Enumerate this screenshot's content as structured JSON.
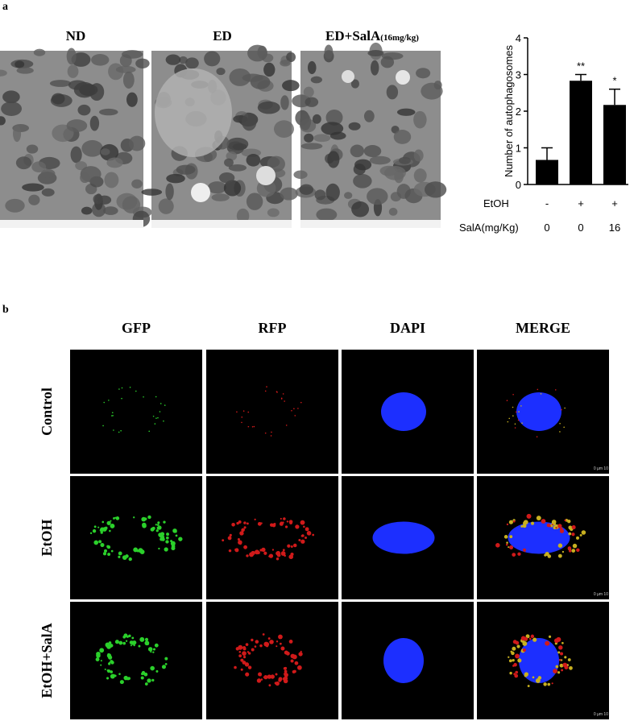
{
  "panel_a": {
    "label": "a",
    "em_images": [
      {
        "title": "ND"
      },
      {
        "title": "ED"
      },
      {
        "title": "ED+SalA",
        "dose": "(16mg/kg)"
      }
    ]
  },
  "chart_data": {
    "type": "bar",
    "y_label": "Number of autophagosomes",
    "values": [
      0.67,
      2.83,
      2.17
    ],
    "errors": [
      0.33,
      0.17,
      0.43
    ],
    "significance": [
      null,
      "**",
      "*"
    ],
    "color": "#000000",
    "ylim": [
      0,
      4
    ],
    "yticks": [
      0,
      1,
      2,
      3,
      4
    ],
    "treatments": [
      {
        "label": "EtOH",
        "values": [
          "-",
          "+",
          "+"
        ]
      },
      {
        "label": "SalA(mg/Kg)",
        "values": [
          "0",
          "0",
          "16"
        ]
      }
    ]
  },
  "panel_b": {
    "label": "b",
    "columns": [
      "GFP",
      "RFP",
      "DAPI",
      "MERGE"
    ],
    "rows": [
      "Control",
      "EtOH",
      "EtOH+SalA"
    ],
    "scale_label": "0  µm 10"
  }
}
